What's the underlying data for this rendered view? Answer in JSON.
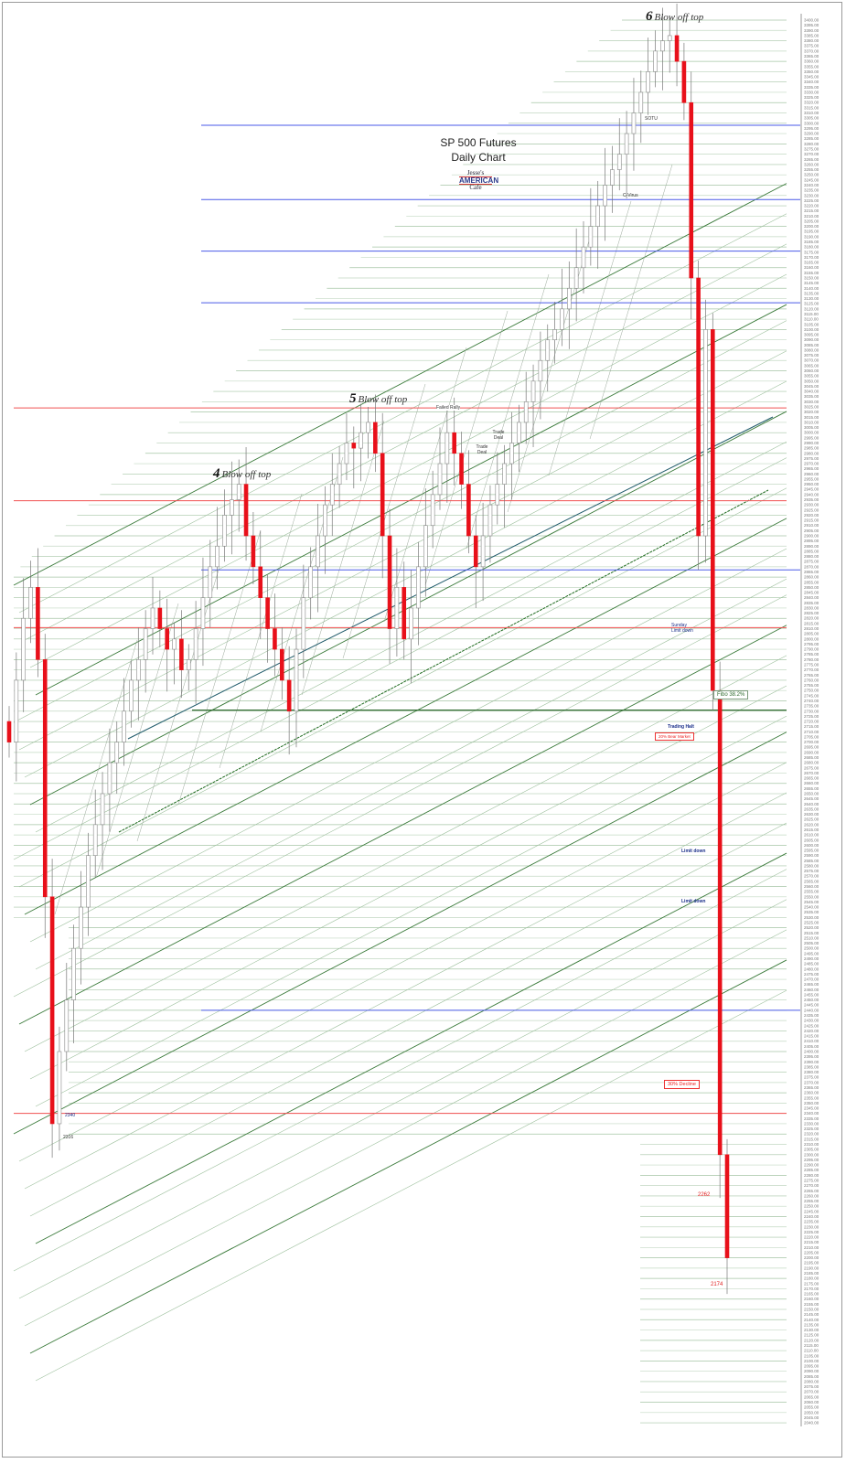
{
  "chart_data": {
    "type": "candlestick",
    "title": "SP 500 Futures",
    "subtitle": "Daily Chart",
    "ylim": [
      2040,
      3400
    ],
    "ytick_step": 5,
    "grid": true,
    "closes": [
      2700,
      2760,
      2820,
      2850,
      2780,
      2550,
      2330,
      2400,
      2450,
      2500,
      2540,
      2590,
      2620,
      2650,
      2680,
      2700,
      2730,
      2760,
      2780,
      2810,
      2830,
      2810,
      2790,
      2800,
      2770,
      2780,
      2810,
      2840,
      2870,
      2890,
      2920,
      2935,
      2950,
      2900,
      2870,
      2840,
      2810,
      2790,
      2760,
      2730,
      2790,
      2840,
      2870,
      2900,
      2930,
      2950,
      2970,
      2990,
      2985,
      3000,
      3010,
      2980,
      2900,
      2810,
      2850,
      2800,
      2830,
      2870,
      2910,
      2940,
      2970,
      3000,
      2980,
      2950,
      2900,
      2870,
      2900,
      2930,
      2950,
      2970,
      2990,
      3010,
      3030,
      3050,
      3070,
      3090,
      3100,
      3120,
      3140,
      3160,
      3180,
      3200,
      3220,
      3240,
      3255,
      3270,
      3290,
      3310,
      3330,
      3350,
      3370,
      3380,
      3385,
      3360,
      3320,
      3150,
      2900,
      3100,
      2750,
      2300,
      2200
    ],
    "key_levels": {
      "red": [
        3024,
        2934,
        2811,
        2340
      ],
      "blue": [
        3298,
        3226,
        3176,
        3126,
        2867,
        2440
      ],
      "dark_green": [
        2731
      ]
    },
    "colors": {
      "down": "#e8101a",
      "up": "#ffffff",
      "red_level": "#f05050",
      "blue_level": "#4a5ae8",
      "grid": "#9cbf9c",
      "fan": "#3a7a3a"
    },
    "annotations": {
      "blow4": {
        "num": "4",
        "text": "Blow off top"
      },
      "blow5": {
        "num": "5",
        "text": "Blow off top"
      },
      "blow6": {
        "num": "6",
        "text": "Blow off top"
      },
      "failed_rally": "Failed Rally",
      "trade_deal_1": "Trade Deal",
      "trade_deal_2": "Trade Deal",
      "sotu": "SOTU",
      "cvirus": "C-Virus",
      "sunday_limit_down": "Sunday Limit down",
      "fibo": "Fibo 38.2%",
      "trading_halt": "Trading Halt",
      "bear_market": "20% Bear Market",
      "limit_down_1": "Limit down",
      "limit_down_2": "Limit down",
      "decline30": "30% Decline",
      "low_2262": "2262",
      "low_2174": "2174",
      "level_2340": "2340",
      "level_2316": "2316"
    }
  },
  "logo": {
    "top": "Jesse's",
    "middle": "AMERICAN",
    "bottom": "Cafe"
  }
}
